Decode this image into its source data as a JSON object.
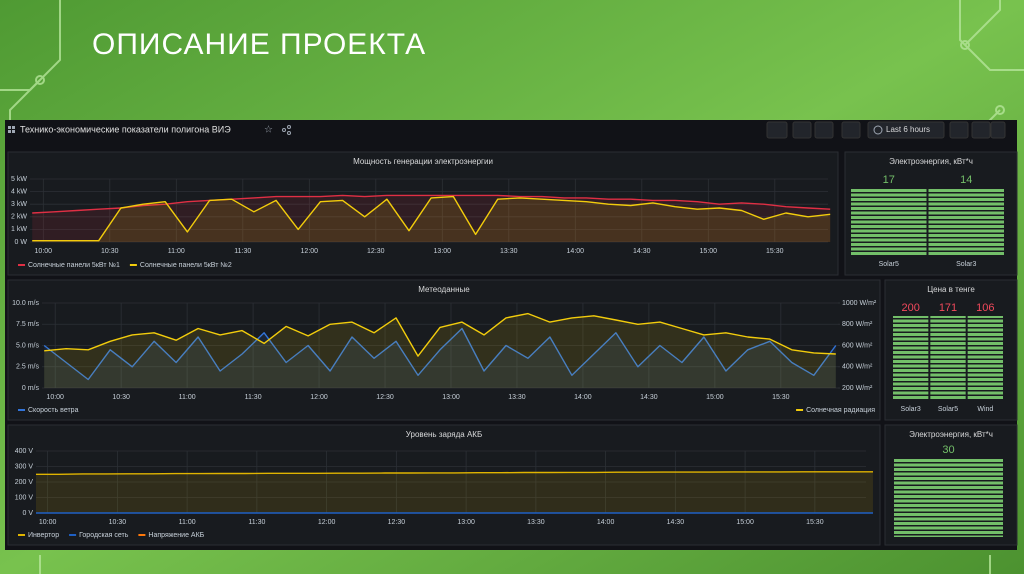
{
  "slide_title": "ОПИСАНИЕ ПРОЕКТА",
  "dashboard": {
    "title": "Технико-экономические показатели полигона ВИЭ",
    "time_range": "Last 6 hours"
  },
  "chart_data": [
    {
      "type": "line",
      "title": "Мощность генерации электроэнергии",
      "x": [
        "09:55",
        "10:05",
        "10:15",
        "10:25",
        "10:35",
        "10:45",
        "10:55",
        "11:05",
        "11:15",
        "11:25",
        "11:35",
        "11:45",
        "11:55",
        "12:05",
        "12:15",
        "12:25",
        "12:35",
        "12:45",
        "12:55",
        "13:05",
        "13:15",
        "13:25",
        "13:35",
        "13:45",
        "13:55",
        "14:05",
        "14:15",
        "14:25",
        "14:35",
        "14:45",
        "14:55",
        "15:05",
        "15:15",
        "15:25",
        "15:35",
        "15:45",
        "15:55"
      ],
      "xlim": [
        "09:54",
        "15:54"
      ],
      "xticks": [
        "10:00",
        "10:30",
        "11:00",
        "11:30",
        "12:00",
        "12:30",
        "13:00",
        "13:30",
        "14:00",
        "14:30",
        "15:00",
        "15:30"
      ],
      "ylim": [
        0,
        5
      ],
      "yticks": [
        {
          "value": 0,
          "label": "0 W"
        },
        {
          "value": 1,
          "label": "1 kW"
        },
        {
          "value": 2,
          "label": "2 kW"
        },
        {
          "value": 3,
          "label": "3 kW"
        },
        {
          "value": 4,
          "label": "4 kW"
        },
        {
          "value": 5,
          "label": "5 kW"
        }
      ],
      "grid": true,
      "legend": "bottom-left",
      "series": [
        {
          "name": "Солнечные панели 5кВт №1",
          "color": "#e02f44",
          "values": [
            2.3,
            2.4,
            2.5,
            2.6,
            2.7,
            2.9,
            3.0,
            3.2,
            3.3,
            3.4,
            3.5,
            3.6,
            3.6,
            3.6,
            3.7,
            3.6,
            3.7,
            3.7,
            3.7,
            3.7,
            3.7,
            3.7,
            3.6,
            3.6,
            3.5,
            3.5,
            3.4,
            3.4,
            3.3,
            3.3,
            3.2,
            3.0,
            3.1,
            3.0,
            2.8,
            2.7,
            2.6
          ]
        },
        {
          "name": "Солнечные панели 5кВт №2",
          "color": "#f2cc0c",
          "values": [
            0.1,
            0.1,
            0.1,
            0.1,
            2.7,
            3.0,
            3.2,
            0.8,
            3.3,
            3.4,
            2.4,
            3.3,
            1.0,
            3.2,
            3.3,
            2.0,
            3.4,
            0.9,
            3.5,
            3.6,
            0.6,
            3.4,
            3.5,
            3.4,
            3.3,
            3.2,
            3.0,
            2.9,
            3.1,
            2.8,
            2.6,
            2.7,
            2.5,
            1.8,
            2.3,
            2.0,
            2.2
          ]
        }
      ]
    },
    {
      "type": "line",
      "title": "Метеоданные",
      "x": [
        "09:55",
        "10:05",
        "10:15",
        "10:25",
        "10:35",
        "10:45",
        "10:55",
        "11:05",
        "11:15",
        "11:25",
        "11:35",
        "11:45",
        "11:55",
        "12:05",
        "12:15",
        "12:25",
        "12:35",
        "12:45",
        "12:55",
        "13:05",
        "13:15",
        "13:25",
        "13:35",
        "13:45",
        "13:55",
        "14:05",
        "14:15",
        "14:25",
        "14:35",
        "14:45",
        "14:55",
        "15:05",
        "15:15",
        "15:25",
        "15:35",
        "15:45",
        "15:55"
      ],
      "xlim": [
        "09:54",
        "15:56"
      ],
      "xticks": [
        "10:00",
        "10:30",
        "11:00",
        "11:30",
        "12:00",
        "12:30",
        "13:00",
        "13:30",
        "14:00",
        "14:30",
        "15:00",
        "15:30"
      ],
      "ylim": [
        0,
        10
      ],
      "yticks": [
        {
          "value": 0,
          "label": "0 m/s"
        },
        {
          "value": 2.5,
          "label": "2.5 m/s"
        },
        {
          "value": 5,
          "label": "5.0 m/s"
        },
        {
          "value": 7.5,
          "label": "7.5 m/s"
        },
        {
          "value": 10,
          "label": "10.0 m/s"
        }
      ],
      "y2lim": [
        200,
        1000
      ],
      "y2ticks": [
        {
          "value": 200,
          "label": "200 W/m²"
        },
        {
          "value": 400,
          "label": "400 W/m²"
        },
        {
          "value": 600,
          "label": "600 W/m²"
        },
        {
          "value": 800,
          "label": "800 W/m²"
        },
        {
          "value": 1000,
          "label": "1000 W/m²"
        }
      ],
      "grid": true,
      "legend": "bottom-left",
      "series": [
        {
          "name": "Скорость ветра",
          "color": "#3274d9",
          "values": [
            5.0,
            3.0,
            1.0,
            4.5,
            2.5,
            5.5,
            3.0,
            6.0,
            2.0,
            4.0,
            6.5,
            3.0,
            5.0,
            2.0,
            6.0,
            3.5,
            5.5,
            1.5,
            4.5,
            7.0,
            2.0,
            5.0,
            3.5,
            6.0,
            1.5,
            4.0,
            6.5,
            2.5,
            5.0,
            3.0,
            6.0,
            2.0,
            4.5,
            5.5,
            3.0,
            1.5,
            5.0
          ]
        },
        {
          "name": "Солнечная радиация",
          "color": "#f2cc0c",
          "axis": "y2",
          "values": [
            550,
            570,
            560,
            640,
            700,
            720,
            650,
            760,
            700,
            740,
            620,
            780,
            690,
            800,
            820,
            720,
            860,
            500,
            770,
            820,
            700,
            860,
            900,
            820,
            860,
            880,
            840,
            800,
            820,
            760,
            700,
            720,
            680,
            660,
            560,
            530,
            520
          ]
        }
      ]
    },
    {
      "type": "line",
      "title": "Уровень заряда АКБ",
      "x": [
        "09:55",
        "10:05",
        "10:15",
        "10:25",
        "10:35",
        "10:45",
        "10:55",
        "11:05",
        "11:15",
        "11:25",
        "11:35",
        "11:45",
        "11:55",
        "12:05",
        "12:15",
        "12:25",
        "12:35",
        "12:45",
        "12:55",
        "13:05",
        "13:15",
        "13:25",
        "13:35",
        "13:45",
        "13:55",
        "14:05",
        "14:15",
        "14:25",
        "14:35",
        "14:45",
        "14:55",
        "15:05",
        "15:15",
        "15:25",
        "15:35",
        "15:45",
        "15:55"
      ],
      "xlim": [
        "09:55",
        "15:52"
      ],
      "xticks": [
        "10:00",
        "10:30",
        "11:00",
        "11:30",
        "12:00",
        "12:30",
        "13:00",
        "13:30",
        "14:00",
        "14:30",
        "15:00",
        "15:30"
      ],
      "ylim": [
        0,
        400
      ],
      "yticks": [
        {
          "value": 0,
          "label": "0 V"
        },
        {
          "value": 100,
          "label": "100 V"
        },
        {
          "value": 200,
          "label": "200 V"
        },
        {
          "value": 300,
          "label": "300 V"
        },
        {
          "value": 400,
          "label": "400 V"
        }
      ],
      "grid": true,
      "legend": "bottom-left",
      "series": [
        {
          "name": "Инвертор",
          "color": "#e0b400",
          "values": [
            250,
            250,
            252,
            252,
            253,
            253,
            254,
            254,
            255,
            255,
            256,
            256,
            256,
            257,
            257,
            258,
            258,
            259,
            259,
            260,
            260,
            261,
            261,
            262,
            262,
            263,
            263,
            264,
            264,
            264,
            265,
            265,
            265,
            266,
            266,
            266,
            266
          ]
        },
        {
          "name": "Городская сеть",
          "color": "#1f60c4",
          "values": [
            0,
            0,
            0,
            0,
            0,
            0,
            0,
            0,
            0,
            0,
            0,
            0,
            0,
            0,
            0,
            0,
            0,
            0,
            0,
            0,
            0,
            0,
            0,
            0,
            0,
            0,
            0,
            0,
            0,
            0,
            0,
            0,
            0,
            0,
            0,
            0,
            0
          ]
        },
        {
          "name": "Напряжение АКБ",
          "color": "#ff780a",
          "values": [
            null,
            null,
            null,
            null,
            null,
            null,
            null,
            null,
            null,
            null,
            null,
            null,
            null,
            null,
            null,
            null,
            null,
            null,
            null,
            null,
            null,
            null,
            null,
            null,
            null,
            null,
            null,
            null,
            null,
            null,
            null,
            null,
            null,
            null,
            null,
            null,
            null
          ]
        }
      ]
    },
    {
      "type": "bar_gauge",
      "title": "Электроэнергия, кВт*ч",
      "categories": [
        "Solar5",
        "Solar3"
      ],
      "values": [
        17,
        14
      ],
      "color": "#73bf69",
      "value_color": "#73bf69"
    },
    {
      "type": "bar_gauge",
      "title": "Цена в тенге",
      "categories": [
        "Solar3",
        "Solar5",
        "Wind"
      ],
      "values": [
        200,
        171,
        106
      ],
      "color": "#73bf69",
      "value_color": "#f2495c"
    },
    {
      "type": "bar_gauge",
      "title": "Электроэнергия, кВт*ч",
      "categories": [
        null
      ],
      "values": [
        30
      ],
      "color": "#73bf69",
      "value_color": "#73bf69"
    }
  ]
}
